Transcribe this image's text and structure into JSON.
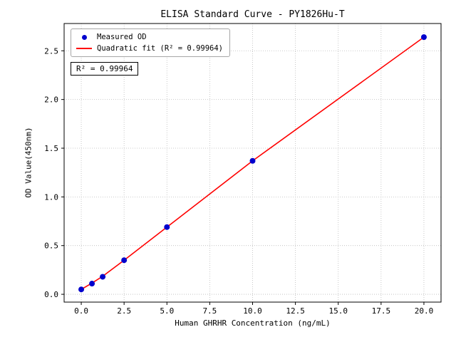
{
  "chart_data": {
    "type": "scatter",
    "title": "ELISA Standard Curve - PY1826Hu-T",
    "xlabel": "Human GHRHR Concentration (ng/mL)",
    "ylabel": "OD Value(450nm)",
    "xlim": [
      -1,
      21
    ],
    "ylim": [
      -0.08,
      2.78
    ],
    "xtick_values": [
      0,
      2.5,
      5,
      7.5,
      10,
      12.5,
      15,
      17.5,
      20
    ],
    "xtick_labels": [
      "0.0",
      "2.5",
      "5.0",
      "7.5",
      "10.0",
      "12.5",
      "15.0",
      "17.5",
      "20.0"
    ],
    "ytick_values": [
      0,
      0.5,
      1,
      1.5,
      2,
      2.5
    ],
    "ytick_labels": [
      "0.0",
      "0.5",
      "1.0",
      "1.5",
      "2.0",
      "2.5"
    ],
    "grid": true,
    "annotation": "R² = 0.99964",
    "legend": {
      "position": "upper-left",
      "entries": [
        {
          "label": "Measured OD",
          "marker": "circle",
          "color": "#0000cd"
        },
        {
          "label": "Quadratic fit (R² = 0.99964)",
          "marker": "line",
          "color": "#ff0000"
        }
      ]
    },
    "series": [
      {
        "name": "Quadratic fit",
        "type": "line",
        "color": "#ff0000",
        "x": [
          0,
          0.625,
          1.25,
          2.5,
          5,
          10,
          20
        ],
        "y": [
          0.05,
          0.115,
          0.185,
          0.35,
          0.69,
          1.37,
          2.64
        ]
      },
      {
        "name": "Measured OD",
        "type": "scatter",
        "color": "#0000cd",
        "x": [
          0,
          0.625,
          1.25,
          2.5,
          5,
          10,
          20
        ],
        "y": [
          0.05,
          0.11,
          0.18,
          0.35,
          0.69,
          1.37,
          2.64
        ]
      }
    ],
    "colors": {
      "grid": "#bbbbbb",
      "frame": "#000000",
      "background": "#ffffff"
    }
  }
}
